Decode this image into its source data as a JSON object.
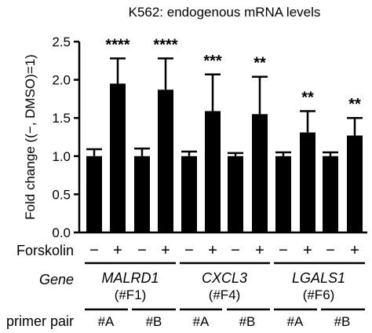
{
  "chart_data": {
    "type": "bar",
    "title": "K562: endogenous mRNA levels",
    "xlabel": "",
    "ylabel": "Fold change ((−, DMSO)=1)",
    "ylim": [
      0,
      2.5
    ],
    "yticks": [
      "0.0",
      "0.5",
      "1.0",
      "1.5",
      "2.0",
      "2.5"
    ],
    "ytick_values": [
      0,
      0.5,
      1.0,
      1.5,
      2.0,
      2.5
    ],
    "bar_color": "#000000",
    "bars": [
      {
        "forskolin": "−",
        "value": 1.0,
        "error": 0.09,
        "sig": ""
      },
      {
        "forskolin": "+",
        "value": 1.95,
        "error": 0.33,
        "sig": "****"
      },
      {
        "forskolin": "−",
        "value": 1.0,
        "error": 0.1,
        "sig": ""
      },
      {
        "forskolin": "+",
        "value": 1.87,
        "error": 0.41,
        "sig": "****"
      },
      {
        "forskolin": "−",
        "value": 1.0,
        "error": 0.06,
        "sig": ""
      },
      {
        "forskolin": "+",
        "value": 1.59,
        "error": 0.48,
        "sig": "***"
      },
      {
        "forskolin": "−",
        "value": 1.0,
        "error": 0.04,
        "sig": ""
      },
      {
        "forskolin": "+",
        "value": 1.55,
        "error": 0.49,
        "sig": "**"
      },
      {
        "forskolin": "−",
        "value": 1.0,
        "error": 0.05,
        "sig": ""
      },
      {
        "forskolin": "+",
        "value": 1.31,
        "error": 0.28,
        "sig": "**"
      },
      {
        "forskolin": "−",
        "value": 1.0,
        "error": 0.05,
        "sig": ""
      },
      {
        "forskolin": "+",
        "value": 1.27,
        "error": 0.23,
        "sig": "**"
      }
    ],
    "row_labels": {
      "forskolin": "Forskolin",
      "gene": "Gene",
      "primer": "primer pair"
    },
    "genes": [
      {
        "name": "MALRD1",
        "sub": "(#F1)"
      },
      {
        "name": "CXCL3",
        "sub": "(#F4)"
      },
      {
        "name": "LGALS1",
        "sub": "(#F6)"
      }
    ],
    "primer_pairs": [
      "#A",
      "#B",
      "#A",
      "#B",
      "#A",
      "#B"
    ]
  }
}
